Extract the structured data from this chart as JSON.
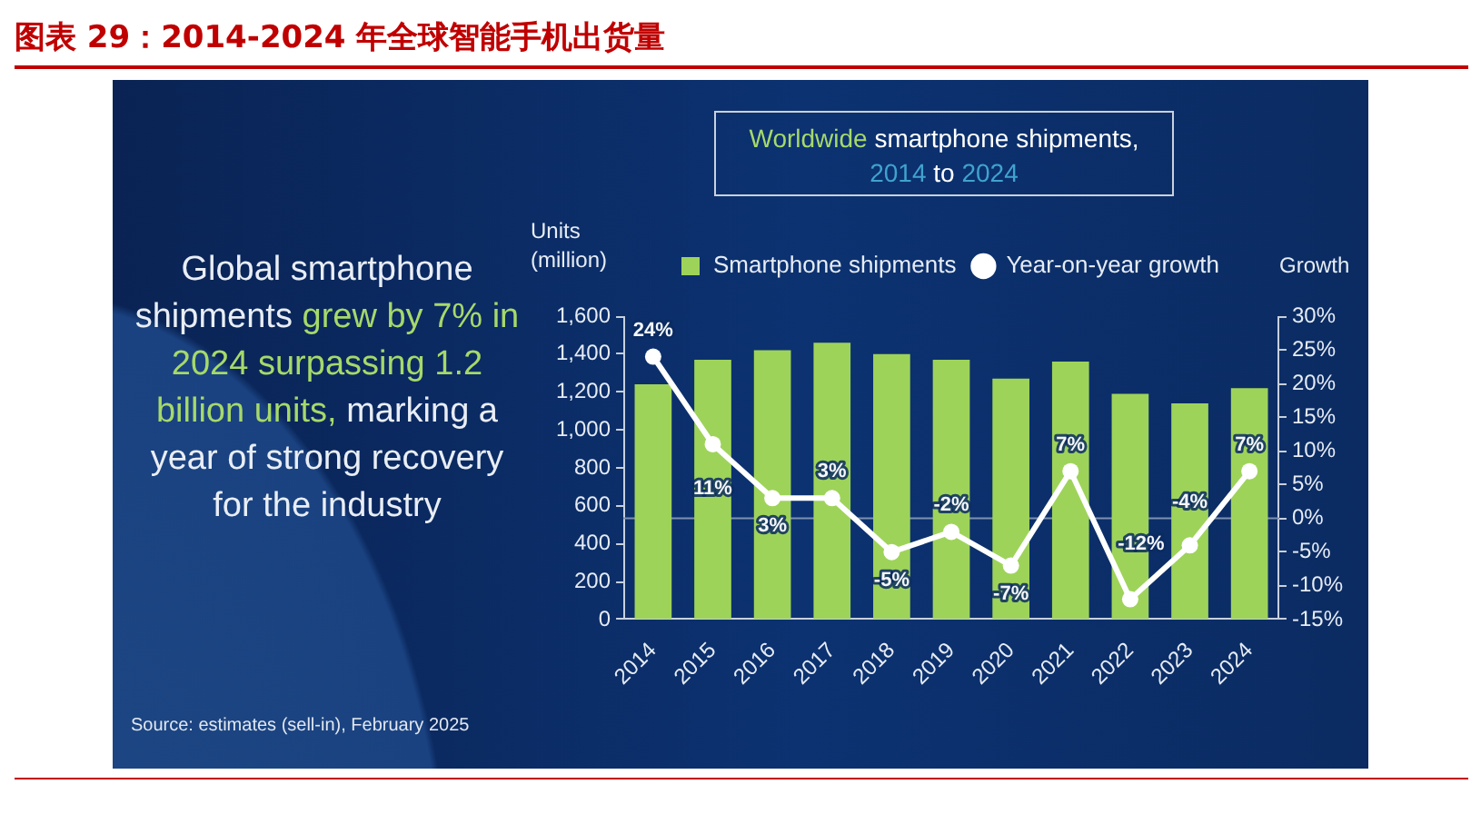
{
  "chart_data": {
    "type": "bar",
    "title": "图表 29：2014-2024 年全球智能手机出货量",
    "subtitle": "Worldwide smartphone shipments, 2014 to 2024",
    "ylabel": "Units (million)",
    "y2label": "Growth",
    "annotations": [
      "Global smartphone shipments grew by 7% in 2024 surpassing 1.2 billion units, marking a year of strong recovery for the industry",
      "Source: estimates (sell-in), February 2025"
    ],
    "categories": [
      "2014",
      "2015",
      "2016",
      "2017",
      "2018",
      "2019",
      "2020",
      "2021",
      "2022",
      "2023",
      "2024"
    ],
    "series": [
      {
        "name": "Smartphone shipments",
        "color": "#9ed35a",
        "values": [
          1240,
          1370,
          1420,
          1460,
          1400,
          1370,
          1270,
          1360,
          1190,
          1140,
          1220
        ]
      },
      {
        "name": "Year-on-year growth",
        "type": "line",
        "axis": "y2",
        "color": "#ffffff",
        "values": [
          24,
          11,
          3,
          3,
          -5,
          -2,
          -7,
          7,
          -12,
          -4,
          7
        ],
        "value_labels": [
          "24%",
          "11%",
          "3%",
          "3%",
          "-5%",
          "-2%",
          "-7%",
          "7%",
          "-12%",
          "-4%",
          "7%"
        ]
      }
    ],
    "ylim": [
      0,
      1600
    ],
    "yticks": [
      0,
      200,
      400,
      600,
      800,
      {
        "value": 1000,
        "label": "1,000"
      },
      {
        "value": 1200,
        "label": "1,200"
      },
      {
        "value": 1400,
        "label": "1,400"
      },
      {
        "value": 1600,
        "label": "1,600"
      }
    ],
    "y2lim": [
      -15,
      30
    ],
    "y2ticks": [
      {
        "value": -15,
        "label": "-15%"
      },
      {
        "value": -10,
        "label": "-10%"
      },
      {
        "value": -5,
        "label": "-5%"
      },
      {
        "value": 0,
        "label": "0%"
      },
      {
        "value": 5,
        "label": "5%"
      },
      {
        "value": 10,
        "label": "10%"
      },
      {
        "value": 15,
        "label": "15%"
      },
      {
        "value": 20,
        "label": "20%"
      },
      {
        "value": 25,
        "label": "25%"
      },
      {
        "value": 30,
        "label": "30%"
      }
    ],
    "ref_lines": [
      {
        "axis": "y2",
        "value": 0,
        "color": "#7d91b2"
      }
    ],
    "legend": "top",
    "marker": "circle",
    "line_style": "solid"
  }
}
